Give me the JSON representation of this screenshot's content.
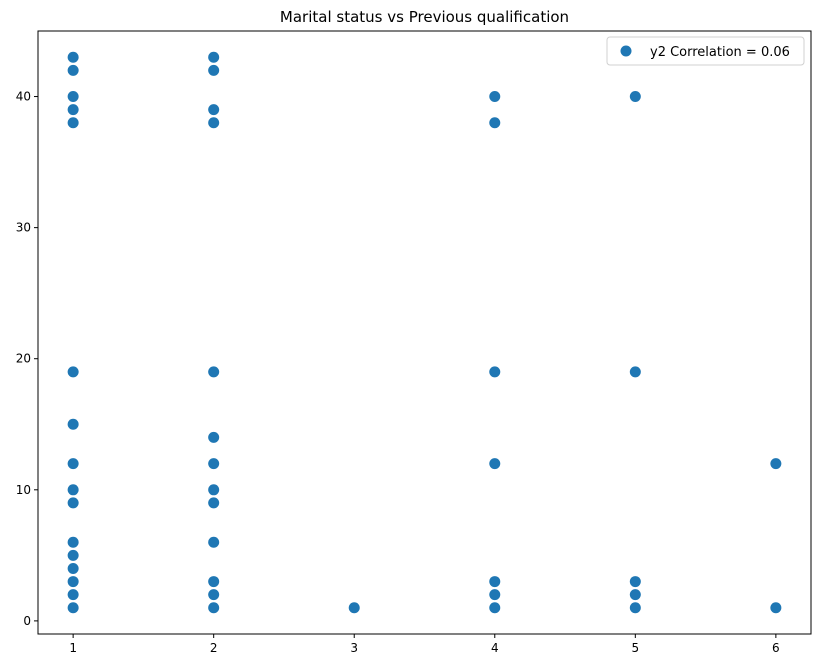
{
  "chart_data": {
    "type": "scatter",
    "title": "Marital status vs Previous qualification",
    "xlabel": "",
    "ylabel": "",
    "xlim": [
      0.75,
      6.25
    ],
    "ylim": [
      -1.0,
      45.0
    ],
    "xticks": [
      1,
      2,
      3,
      4,
      5,
      6
    ],
    "yticks": [
      0,
      10,
      20,
      30,
      40
    ],
    "grid": false,
    "legend": "top-right",
    "series": [
      {
        "name": "y2 Correlation = 0.06",
        "color": "#1f77b4",
        "points": [
          [
            1,
            1
          ],
          [
            1,
            2
          ],
          [
            1,
            3
          ],
          [
            1,
            4
          ],
          [
            1,
            5
          ],
          [
            1,
            6
          ],
          [
            1,
            9
          ],
          [
            1,
            10
          ],
          [
            1,
            12
          ],
          [
            1,
            15
          ],
          [
            1,
            19
          ],
          [
            1,
            38
          ],
          [
            1,
            39
          ],
          [
            1,
            40
          ],
          [
            1,
            42
          ],
          [
            1,
            43
          ],
          [
            2,
            1
          ],
          [
            2,
            2
          ],
          [
            2,
            3
          ],
          [
            2,
            6
          ],
          [
            2,
            9
          ],
          [
            2,
            10
          ],
          [
            2,
            12
          ],
          [
            2,
            14
          ],
          [
            2,
            19
          ],
          [
            2,
            38
          ],
          [
            2,
            39
          ],
          [
            2,
            42
          ],
          [
            2,
            43
          ],
          [
            3,
            1
          ],
          [
            4,
            1
          ],
          [
            4,
            2
          ],
          [
            4,
            3
          ],
          [
            4,
            12
          ],
          [
            4,
            19
          ],
          [
            4,
            38
          ],
          [
            4,
            40
          ],
          [
            5,
            1
          ],
          [
            5,
            2
          ],
          [
            5,
            3
          ],
          [
            5,
            19
          ],
          [
            5,
            40
          ],
          [
            6,
            1
          ],
          [
            6,
            12
          ]
        ]
      }
    ]
  }
}
